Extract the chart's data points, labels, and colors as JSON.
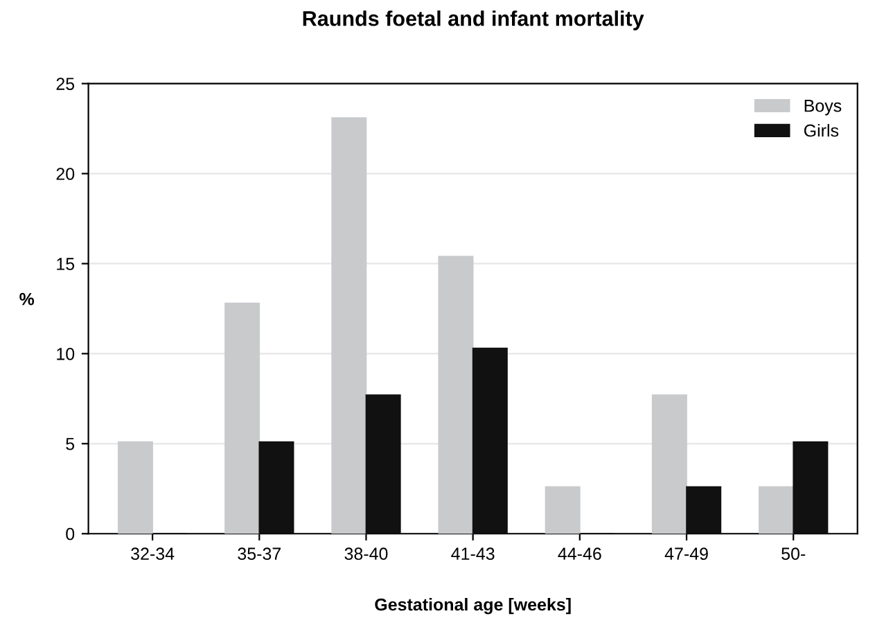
{
  "chart_data": {
    "type": "bar",
    "title": "Raunds foetal and infant mortality",
    "xlabel": "Gestational age [weeks]",
    "ylabel": "%",
    "categories": [
      "32-34",
      "35-37",
      "38-40",
      "41-43",
      "44-46",
      "47-49",
      "50-"
    ],
    "series": [
      {
        "name": "Boys",
        "color": "#c8cacc",
        "values": [
          5.1,
          12.8,
          23.1,
          15.4,
          2.6,
          7.7,
          2.6
        ]
      },
      {
        "name": "Girls",
        "color": "#111111",
        "values": [
          0,
          5.1,
          7.7,
          10.3,
          0,
          2.6,
          5.1
        ]
      }
    ],
    "ylim": [
      0,
      25
    ],
    "yticks": [
      0,
      5,
      10,
      15,
      20,
      25
    ],
    "grid": "y",
    "legend": "top right"
  }
}
